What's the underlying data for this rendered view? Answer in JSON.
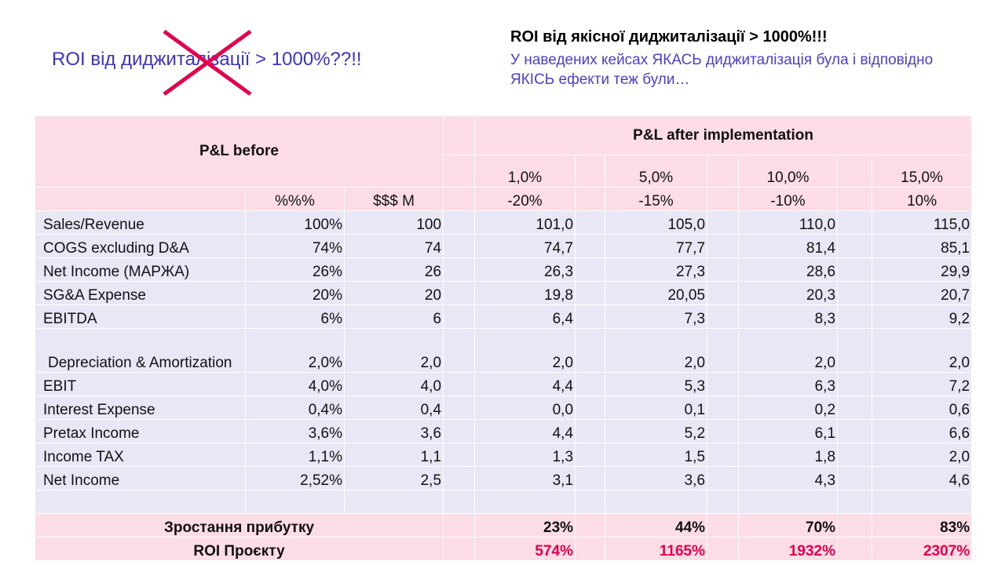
{
  "title_crossed": "ROI від диджиталізації  > 1000%??!!",
  "title_main": "ROI від якісної диджиталізації  > 1000%!!!",
  "subtitle": "У наведених кейсах ЯКАСЬ диджиталізація  була і відповідно ЯКІСЬ ефекти теж були…",
  "header": {
    "before": "P&L before",
    "after": "P&L after implementation",
    "pct": "%%%",
    "usd": "$$$ M",
    "scenarios": [
      "1,0%",
      "5,0%",
      "10,0%",
      "15,0%"
    ],
    "changes": [
      "-20%",
      "-15%",
      "-10%",
      "10%"
    ]
  },
  "rows": [
    {
      "label": "Sales/Revenue",
      "pct": "100%",
      "usd": "100",
      "v": [
        "101,0",
        "105,0",
        "110,0",
        "115,0"
      ]
    },
    {
      "label": "COGS excluding D&A",
      "pct": "74%",
      "usd": "74",
      "v": [
        "74,7",
        "77,7",
        "81,4",
        "85,1"
      ]
    },
    {
      "label": "Net Income (МАРЖА)",
      "pct": "26%",
      "usd": "26",
      "v": [
        "26,3",
        "27,3",
        "28,6",
        "29,9"
      ]
    },
    {
      "label": "SG&A Expense",
      "pct": "20%",
      "usd": "20",
      "v": [
        "19,8",
        "20,05",
        "20,3",
        "20,7"
      ]
    },
    {
      "label": "EBITDA",
      "pct": "6%",
      "usd": "6",
      "v": [
        "6,4",
        "7,3",
        "8,3",
        "9,2"
      ]
    },
    {
      "label": " Depreciation & Amortization",
      "pct": "2,0%",
      "usd": "2,0",
      "v": [
        "2,0",
        "2,0",
        "2,0",
        "2,0"
      ]
    },
    {
      "label": "EBIT",
      "pct": "4,0%",
      "usd": "4,0",
      "v": [
        "4,4",
        "5,3",
        "6,3",
        "7,2"
      ]
    },
    {
      "label": " Interest Expense",
      "pct": "0,4%",
      "usd": "0,4",
      "v": [
        "0,0",
        "0,1",
        "0,2",
        "0,6"
      ]
    },
    {
      "label": " Pretax Income",
      "pct": "3,6%",
      "usd": "3,6",
      "v": [
        "4,4",
        "5,2",
        "6,1",
        "6,6"
      ]
    },
    {
      "label": "Income TAX",
      "pct": "1,1%",
      "usd": "1,1",
      "v": [
        "1,3",
        "1,5",
        "1,8",
        "2,0"
      ]
    },
    {
      "label": "Net Income",
      "pct": "2,52%",
      "usd": "2,5",
      "v": [
        "3,1",
        "3,6",
        "4,3",
        "4,6"
      ]
    }
  ],
  "growth": {
    "label": "Зростання прибутку",
    "v": [
      "23%",
      "44%",
      "70%",
      "83%"
    ]
  },
  "roi": {
    "label": "ROI Проєкту",
    "v": [
      "574%",
      "1165%",
      "1932%",
      "2307%"
    ]
  },
  "colors": {
    "pink": "#fcdde6",
    "lavender": "#e9e7f6",
    "red": "#e5004f",
    "blue": "#3b33c4"
  }
}
